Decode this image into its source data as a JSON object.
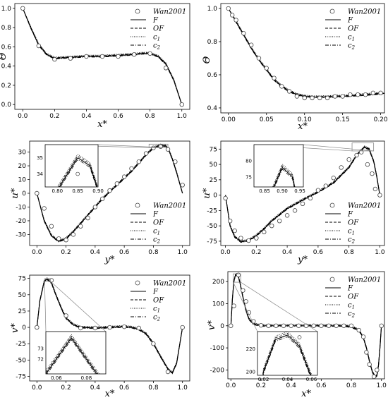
{
  "legend_labels": [
    "Wan2001",
    "F",
    "OF",
    "c1",
    "c2"
  ],
  "chart_data": [
    {
      "id": "p1",
      "type": "line",
      "xlabel": "x*",
      "ylabel": "Θ",
      "xlim": [
        -0.05,
        1.05
      ],
      "ylim": [
        -0.05,
        1.05
      ],
      "xticks": [
        0.0,
        0.2,
        0.4,
        0.6,
        0.8,
        1.0
      ],
      "yticks": [
        0.0,
        0.2,
        0.4,
        0.6,
        0.8,
        1.0
      ],
      "ref": {
        "name": "Wan2001",
        "x": [
          0,
          0.1,
          0.2,
          0.3,
          0.4,
          0.5,
          0.6,
          0.7,
          0.8,
          0.9,
          1.0
        ],
        "y": [
          1.0,
          0.61,
          0.47,
          0.48,
          0.5,
          0.5,
          0.5,
          0.52,
          0.53,
          0.38,
          0.0
        ]
      },
      "series": [
        {
          "name": "F",
          "x": [
            0,
            0.05,
            0.1,
            0.15,
            0.2,
            0.3,
            0.4,
            0.5,
            0.6,
            0.7,
            0.75,
            0.8,
            0.85,
            0.9,
            0.95,
            1.0
          ],
          "y": [
            1.0,
            0.8,
            0.62,
            0.52,
            0.48,
            0.49,
            0.5,
            0.5,
            0.51,
            0.52,
            0.53,
            0.53,
            0.5,
            0.42,
            0.25,
            0.0
          ]
        }
      ],
      "legend": "top-right"
    },
    {
      "id": "p2",
      "type": "line",
      "xlabel": "x*",
      "ylabel": "Θ",
      "xlim": [
        -0.01,
        0.205
      ],
      "ylim": [
        0.37,
        1.03
      ],
      "xticks": [
        0.0,
        0.05,
        0.1,
        0.15,
        0.2
      ],
      "yticks": [
        0.4,
        0.6,
        0.8,
        1.0
      ],
      "ref": {
        "name": "Wan2001",
        "x": [
          0,
          0.005,
          0.01,
          0.02,
          0.03,
          0.04,
          0.05,
          0.06,
          0.07,
          0.08,
          0.09,
          0.1,
          0.11,
          0.12,
          0.13,
          0.14,
          0.15,
          0.16,
          0.17,
          0.18,
          0.19,
          0.2
        ],
        "y": [
          1.0,
          0.96,
          0.93,
          0.85,
          0.78,
          0.7,
          0.64,
          0.58,
          0.53,
          0.5,
          0.47,
          0.46,
          0.46,
          0.46,
          0.46,
          0.47,
          0.47,
          0.48,
          0.48,
          0.48,
          0.49,
          0.49
        ]
      },
      "series": [
        {
          "name": "F",
          "x": [
            0,
            0.01,
            0.02,
            0.03,
            0.04,
            0.05,
            0.06,
            0.07,
            0.08,
            0.09,
            0.1,
            0.11,
            0.12,
            0.13,
            0.14,
            0.15,
            0.16,
            0.17,
            0.18,
            0.19,
            0.2,
            0.205
          ],
          "y": [
            1.0,
            0.92,
            0.84,
            0.76,
            0.69,
            0.63,
            0.57,
            0.53,
            0.5,
            0.48,
            0.47,
            0.465,
            0.465,
            0.466,
            0.468,
            0.47,
            0.473,
            0.476,
            0.479,
            0.482,
            0.486,
            0.488
          ]
        }
      ],
      "legend": "top-right"
    },
    {
      "id": "p3",
      "type": "line",
      "xlabel": "y*",
      "ylabel": "u*",
      "xlim": [
        -0.05,
        1.05
      ],
      "ylim": [
        -38,
        38
      ],
      "xticks": [
        0.0,
        0.2,
        0.4,
        0.6,
        0.8,
        1.0
      ],
      "yticks": [
        -30,
        -20,
        -10,
        0,
        10,
        20,
        30
      ],
      "ref": {
        "name": "Wan2001",
        "x": [
          0,
          0.05,
          0.1,
          0.15,
          0.2,
          0.25,
          0.3,
          0.35,
          0.4,
          0.45,
          0.5,
          0.55,
          0.6,
          0.65,
          0.7,
          0.75,
          0.8,
          0.85,
          0.9,
          0.95,
          1.0
        ],
        "y": [
          0,
          -11,
          -24,
          -33,
          -34,
          -30,
          -24,
          -18,
          -10,
          -4,
          2,
          7,
          12,
          18,
          23,
          29,
          33,
          34,
          32,
          23,
          6
        ]
      },
      "series": [
        {
          "name": "F",
          "x": [
            0,
            0.05,
            0.1,
            0.15,
            0.2,
            0.25,
            0.3,
            0.35,
            0.4,
            0.45,
            0.5,
            0.55,
            0.6,
            0.65,
            0.7,
            0.75,
            0.8,
            0.85,
            0.88,
            0.9,
            0.93,
            0.96,
            1.0
          ],
          "y": [
            0,
            -20,
            -31,
            -35,
            -33,
            -28,
            -22,
            -16,
            -10,
            -4,
            1,
            6,
            11,
            16,
            22,
            28,
            33,
            35,
            34.5,
            33,
            25,
            15,
            0
          ]
        }
      ],
      "inset": {
        "xlim": [
          0.77,
          0.9
        ],
        "ylim": [
          33.2,
          35.8
        ],
        "xticks": [
          0.8,
          0.85,
          0.9
        ],
        "yticks": [
          34,
          35
        ]
      },
      "legend": "bottom-right"
    },
    {
      "id": "p4",
      "type": "line",
      "xlabel": "y*",
      "ylabel": "u*",
      "xlim": [
        -0.03,
        1.03
      ],
      "ylim": [
        -82,
        88
      ],
      "xticks": [
        0.0,
        0.2,
        0.4,
        0.6,
        0.8,
        1.0
      ],
      "yticks": [
        -75,
        -50,
        -25,
        0,
        25,
        50,
        75
      ],
      "ref": {
        "name": "Wan2001",
        "x": [
          0,
          0.03,
          0.06,
          0.1,
          0.15,
          0.2,
          0.25,
          0.3,
          0.35,
          0.4,
          0.45,
          0.5,
          0.55,
          0.6,
          0.65,
          0.7,
          0.75,
          0.8,
          0.85,
          0.88,
          0.92,
          0.95,
          0.97,
          1.0
        ],
        "y": [
          -5,
          -42,
          -58,
          -70,
          -74,
          -70,
          -60,
          -50,
          -42,
          -33,
          -25,
          -14,
          -5,
          8,
          15,
          28,
          45,
          58,
          65,
          70,
          50,
          35,
          10,
          0
        ]
      },
      "series": [
        {
          "name": "F",
          "x": [
            0,
            0.03,
            0.06,
            0.1,
            0.15,
            0.2,
            0.25,
            0.3,
            0.4,
            0.5,
            0.6,
            0.7,
            0.8,
            0.85,
            0.9,
            0.93,
            0.96,
            0.98,
            1.0
          ],
          "y": [
            0,
            -50,
            -68,
            -76,
            -74,
            -66,
            -55,
            -42,
            -22,
            -8,
            5,
            20,
            45,
            65,
            78,
            75,
            55,
            30,
            0
          ]
        }
      ],
      "inset": {
        "xlim": [
          0.82,
          0.96
        ],
        "ylim": [
          72,
          85
        ],
        "xticks": [
          0.85,
          0.9,
          0.95
        ],
        "yticks": [
          75,
          80
        ]
      },
      "legend": "bottom-right"
    },
    {
      "id": "p5",
      "type": "line",
      "xlabel": "x*",
      "ylabel": "v*",
      "xlim": [
        -0.05,
        1.05
      ],
      "ylim": [
        -82,
        80
      ],
      "xticks": [
        0.0,
        0.2,
        0.4,
        0.6,
        0.8,
        1.0
      ],
      "yticks": [
        -75,
        -50,
        -25,
        0,
        25,
        50,
        75
      ],
      "ref": {
        "name": "Wan2001",
        "x": [
          0,
          0.1,
          0.2,
          0.3,
          0.4,
          0.5,
          0.6,
          0.7,
          0.8,
          0.9,
          1.0
        ],
        "y": [
          0,
          72,
          18,
          -1,
          -1,
          0,
          1,
          -1,
          -25,
          -68,
          0
        ]
      },
      "series": [
        {
          "name": "F",
          "x": [
            0,
            0.02,
            0.05,
            0.07,
            0.1,
            0.13,
            0.17,
            0.2,
            0.25,
            0.3,
            0.4,
            0.5,
            0.6,
            0.65,
            0.7,
            0.75,
            0.8,
            0.85,
            0.9,
            0.93,
            0.96,
            1.0
          ],
          "y": [
            0,
            40,
            70,
            74,
            68,
            50,
            28,
            14,
            4,
            0,
            -1,
            0,
            1,
            0,
            -3,
            -10,
            -25,
            -45,
            -64,
            -70,
            -55,
            0
          ]
        }
      ],
      "inset": {
        "xlim": [
          0.053,
          0.093
        ],
        "ylim": [
          70.6,
          74.6
        ],
        "xticks": [
          0.06,
          0.08
        ],
        "yticks": [
          72,
          73
        ]
      },
      "legend": "top-right"
    },
    {
      "id": "p6",
      "type": "line",
      "xlabel": "x*",
      "ylabel": "v*",
      "xlim": [
        -0.02,
        1.02
      ],
      "ylim": [
        -240,
        245
      ],
      "xticks": [
        0.0,
        0.2,
        0.4,
        0.6,
        0.8,
        1.0
      ],
      "yticks": [
        -200,
        -100,
        0,
        100,
        200
      ],
      "ref": {
        "name": "Wan2001",
        "x": [
          0,
          0.02,
          0.05,
          0.08,
          0.1,
          0.12,
          0.15,
          0.2,
          0.25,
          0.3,
          0.35,
          0.4,
          0.45,
          0.5,
          0.55,
          0.6,
          0.65,
          0.7,
          0.75,
          0.8,
          0.85,
          0.88,
          0.9,
          0.92,
          0.95,
          0.97,
          1.0
        ],
        "y": [
          0,
          90,
          230,
          160,
          110,
          60,
          20,
          2,
          0,
          0,
          0,
          0,
          0,
          0,
          0,
          0,
          0,
          0,
          0,
          0,
          -20,
          -50,
          -120,
          -175,
          -230,
          -200,
          0
        ]
      },
      "series": [
        {
          "name": "F",
          "x": [
            0,
            0.01,
            0.02,
            0.03,
            0.04,
            0.05,
            0.06,
            0.08,
            0.1,
            0.12,
            0.15,
            0.2,
            0.3,
            0.4,
            0.5,
            0.6,
            0.7,
            0.75,
            0.8,
            0.85,
            0.88,
            0.9,
            0.92,
            0.94,
            0.96,
            0.97,
            0.98,
            0.99,
            1.0
          ],
          "y": [
            0,
            120,
            200,
            228,
            232,
            222,
            195,
            130,
            70,
            30,
            8,
            0,
            0,
            0,
            0,
            0,
            0,
            0,
            -5,
            -20,
            -55,
            -100,
            -160,
            -210,
            -232,
            -225,
            -180,
            -100,
            0
          ]
        }
      ],
      "inset": {
        "xlim": [
          0.015,
          0.065
        ],
        "ylim": [
          197,
          235
        ],
        "xticks": [
          0.02,
          0.04,
          0.06
        ],
        "yticks": [
          200,
          220
        ]
      },
      "legend": "top-right"
    }
  ]
}
